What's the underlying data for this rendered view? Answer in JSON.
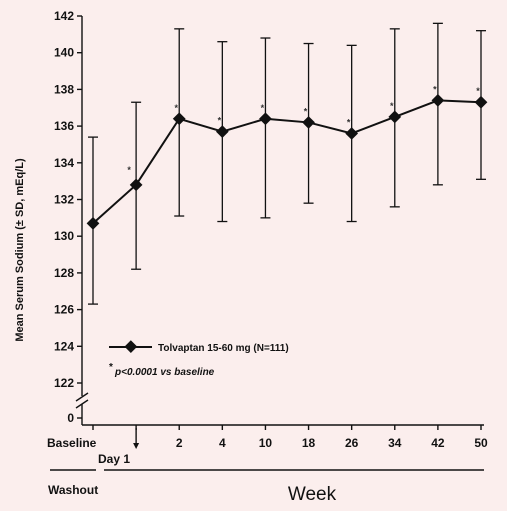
{
  "chart_data": {
    "type": "line",
    "title": "",
    "ylabel": "Mean Serum Sodium (± SD, mEq/L)",
    "xlabel": "Week",
    "ylim": [
      122,
      142
    ],
    "yticks": [
      "122",
      "124",
      "126",
      "128",
      "130",
      "132",
      "134",
      "136",
      "138",
      "140",
      "142"
    ],
    "y_break_label": "0",
    "categories": [
      "Baseline",
      "Day 1",
      "2",
      "4",
      "10",
      "18",
      "26",
      "34",
      "42",
      "50"
    ],
    "series": [
      {
        "name": "Tolvaptan 15-60 mg (N=111)",
        "values": [
          130.7,
          132.8,
          136.4,
          135.7,
          136.4,
          136.2,
          135.6,
          136.5,
          137.4,
          137.3
        ],
        "sd_upper": [
          135.4,
          137.3,
          141.3,
          140.6,
          140.8,
          140.5,
          140.4,
          141.3,
          141.6,
          141.2
        ],
        "sd_lower": [
          126.3,
          128.2,
          131.1,
          130.8,
          131.0,
          131.8,
          130.8,
          131.6,
          132.8,
          133.1
        ],
        "significant": [
          false,
          true,
          true,
          true,
          true,
          true,
          true,
          true,
          true,
          true
        ]
      }
    ],
    "legend": {
      "placement": "lower-left",
      "label": "Tolvaptan 15-60 mg (N=111)",
      "footnote_star": "*",
      "footnote_text": "p<0.0001 vs baseline"
    },
    "star_symbol": "*",
    "period_labels": {
      "washout": "Washout",
      "week": "Week"
    },
    "grid": false
  },
  "colors": {
    "background": "#fbeeed",
    "ink": "#111111"
  }
}
